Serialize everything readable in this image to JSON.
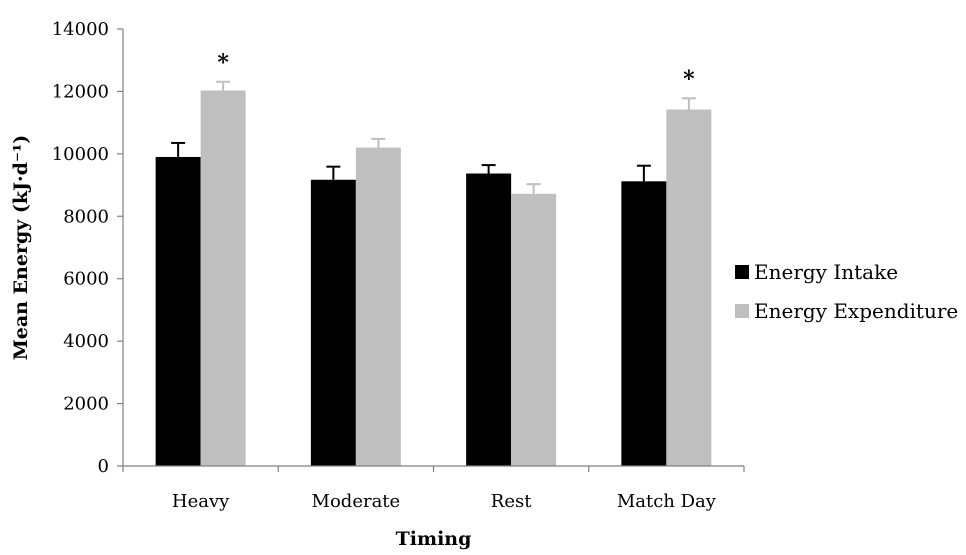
{
  "chart_data": {
    "type": "bar",
    "title": "",
    "xlabel": "Timing",
    "ylabel": "Mean Energy (kJ·d⁻¹)",
    "ylim": [
      0,
      14000
    ],
    "yticks": [
      0,
      2000,
      4000,
      6000,
      8000,
      10000,
      12000,
      14000
    ],
    "categories": [
      "Heavy",
      "Moderate",
      "Rest",
      "Match Day"
    ],
    "series": [
      {
        "name": "Energy Intake",
        "color": "#000000",
        "values": [
          9900,
          9170,
          9370,
          9120
        ],
        "errors": [
          450,
          420,
          270,
          500
        ]
      },
      {
        "name": "Energy Expenditure",
        "color": "#bfbfbf",
        "values": [
          12030,
          10200,
          8720,
          11420
        ],
        "errors": [
          280,
          280,
          310,
          360
        ]
      }
    ],
    "annotations": [
      {
        "category": "Heavy",
        "series": "Energy Expenditure",
        "text": "*"
      },
      {
        "category": "Match Day",
        "series": "Energy Expenditure",
        "text": "*"
      }
    ],
    "grid": false,
    "legend_position": "right"
  }
}
